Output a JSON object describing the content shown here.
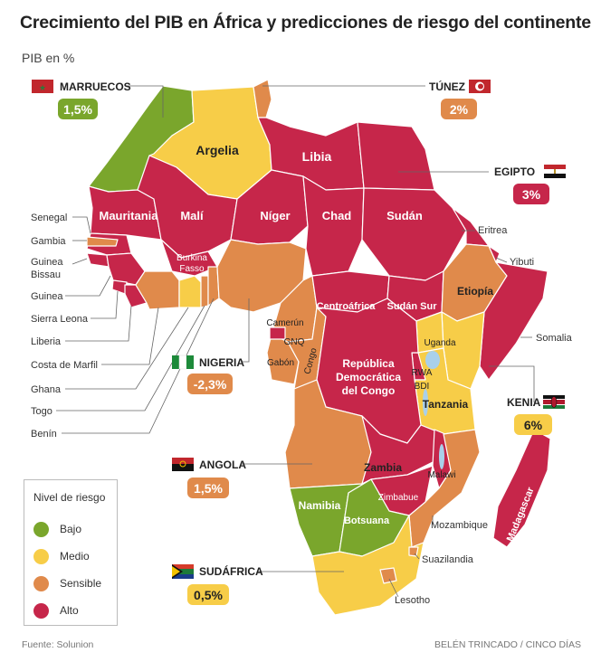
{
  "title": "Crecimiento del PIB en África y predicciones de riesgo del continente",
  "subtitle": "PIB en %",
  "source": "Fuente: Solunion",
  "credit": "BELÉN TRINCADO / CINCO DÍAS",
  "colors": {
    "bajo": "#7aa62c",
    "medio": "#f7cd48",
    "sensible": "#e08a4b",
    "alto": "#c6264a",
    "flag_red": "#c1272d"
  },
  "legend": {
    "title": "Nivel de riesgo",
    "items": [
      {
        "label": "Bajo",
        "color": "#7aa62c"
      },
      {
        "label": "Medio",
        "color": "#f7cd48"
      },
      {
        "label": "Sensible",
        "color": "#e08a4b"
      },
      {
        "label": "Alto",
        "color": "#c6264a"
      }
    ]
  },
  "callouts": {
    "marruecos": {
      "name": "MARRUECOS",
      "value": "1,5%"
    },
    "tunez": {
      "name": "TÚNEZ",
      "value": "2%"
    },
    "egipto": {
      "name": "EGIPTO",
      "value": "3%"
    },
    "nigeria": {
      "name": "NIGERIA",
      "value": "-2,3%"
    },
    "kenia": {
      "name": "KENIA",
      "value": "6%"
    },
    "angola": {
      "name": "ANGOLA",
      "value": "1,5%"
    },
    "sudafrica": {
      "name": "SUDÁFRICA",
      "value": "0,5%"
    }
  },
  "country_labels": {
    "argelia": "Argelia",
    "libia": "Libia",
    "mauritania": "Mauritania",
    "mali": "Malí",
    "niger": "Níger",
    "chad": "Chad",
    "sudan": "Sudán",
    "burkina1": "Burkina",
    "burkina2": "Fasso",
    "etiopia": "Etiopía",
    "centroafrica": "Centroáfrica",
    "sudan_sur": "Sudán Sur",
    "camerun": "Camerún",
    "gnq": "GNQ",
    "gabon": "Gabón",
    "congo": "Congo",
    "rdc1": "República",
    "rdc2": "Democrática",
    "rdc3": "del Congo",
    "uganda": "Uganda",
    "rwa": "RWA",
    "bdi": "BDI",
    "tanzania": "Tanzania",
    "zambia": "Zambia",
    "malawi": "Malawi",
    "zimbabue": "Zimbabue",
    "namibia": "Namibia",
    "botsuana": "Botsuana",
    "madagascar": "Madagascar"
  },
  "side_labels": {
    "senegal": "Senegal",
    "gambia": "Gambia",
    "guinea_bissau1": "Guinea",
    "guinea_bissau2": "Bissau",
    "guinea": "Guinea",
    "sierra_leona": "Sierra Leona",
    "liberia": "Liberia",
    "costa_marfil": "Costa de Marfil",
    "ghana": "Ghana",
    "togo": "Togo",
    "benin": "Benín",
    "eritrea": "Eritrea",
    "yibuti": "Yibuti",
    "somalia": "Somalia",
    "mozambique": "Mozambique",
    "suazilandia": "Suazilandia",
    "lesotho": "Lesotho"
  }
}
